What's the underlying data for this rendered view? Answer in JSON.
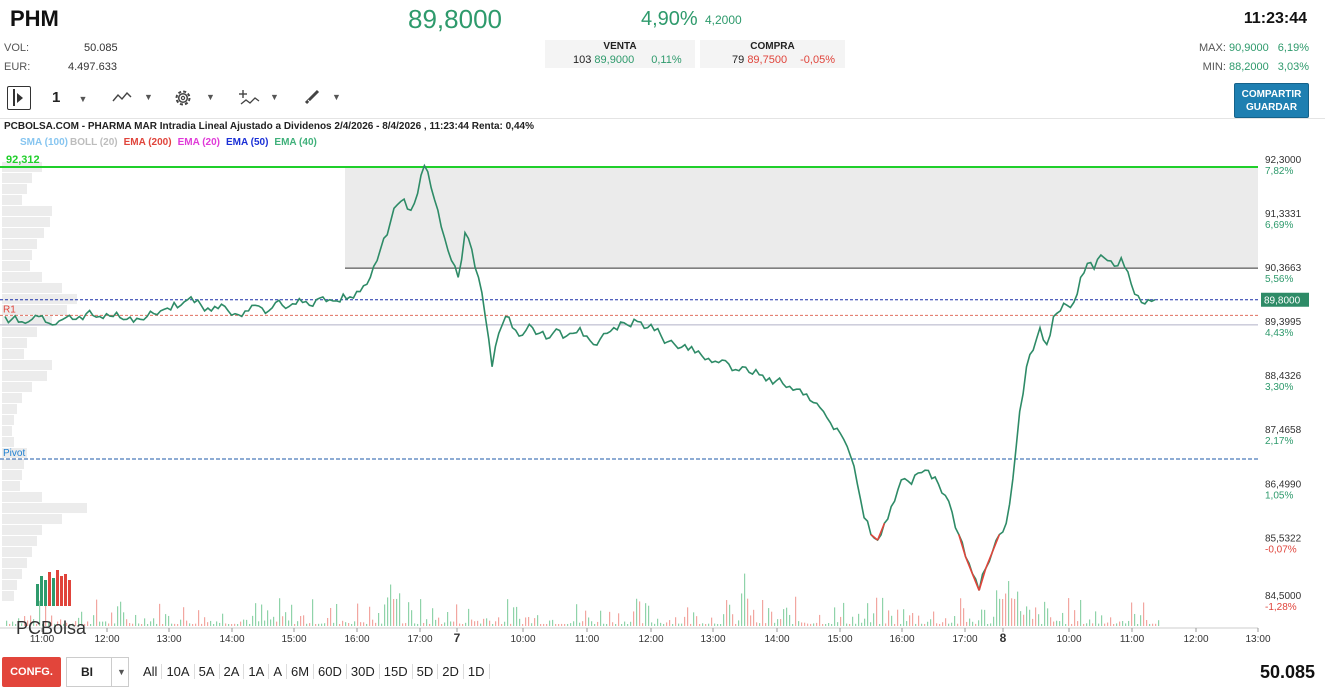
{
  "header": {
    "ticker": "PHM",
    "price": "89,8000",
    "change_pct": "4,90%",
    "change_abs": "4,2000",
    "time": "11:23:44",
    "vol_label": "VOL:",
    "vol_value": "50.085",
    "eur_label": "EUR:",
    "eur_value": "4.497.633",
    "venta_label": "VENTA",
    "venta_qty": "103",
    "venta_price": "89,9000",
    "venta_pct": "0,11%",
    "compra_label": "COMPRA",
    "compra_qty": "79",
    "compra_price": "89,7500",
    "compra_pct": "-0,05%",
    "max_label": "MAX:",
    "max_value": "90,9000",
    "max_pct": "6,19%",
    "min_label": "MIN:",
    "min_value": "88,2000",
    "min_pct": "3,03%"
  },
  "toolbar": {
    "interval": "1",
    "share_line1": "COMPARTIR",
    "share_line2": "GUARDAR"
  },
  "chart_title": "PCBOLSA.COM - PHARMA MAR Intradia Lineal Ajustado a Dividenos 2/4/2026 - 8/4/2026 , 11:23:44 Renta: 0,44%",
  "legend": {
    "sma": "SMA (100)",
    "boll": "BOLL (20)",
    "ema200": "EMA (200)",
    "ema20": "EMA (20)",
    "ema50": "EMA (50)",
    "ema40": "EMA (40)"
  },
  "colors": {
    "up": "#2e9a6c",
    "down": "#e0443b",
    "accent": "#1e7fb1",
    "line": "#2e8b67",
    "sma": "#86c5f0",
    "boll": "#bdbdbd",
    "ema200": "#e0443b",
    "ema20": "#e03ad8",
    "ema50": "#1a2fd6",
    "ema40": "#3fb07a"
  },
  "chart_data": {
    "type": "line",
    "y_ticks": [
      {
        "v": 92.3,
        "label": "92,3000",
        "pct": "7,82%"
      },
      {
        "v": 91.3331,
        "label": "91,3331",
        "pct": "6,69%"
      },
      {
        "v": 90.3663,
        "label": "90,3663",
        "pct": "5,56%"
      },
      {
        "v": 89.3995,
        "label": "89,3995",
        "pct": "4,43%"
      },
      {
        "v": 88.4326,
        "label": "88,4326",
        "pct": "3,30%"
      },
      {
        "v": 87.4658,
        "label": "87,4658",
        "pct": "2,17%"
      },
      {
        "v": 86.499,
        "label": "86,4990",
        "pct": "1,05%"
      },
      {
        "v": 85.5322,
        "label": "85,5322",
        "pct": "-0,07%"
      },
      {
        "v": 84.5,
        "label": "84,5000",
        "pct": "-1,28%"
      }
    ],
    "x_ticks": [
      "11:00",
      "12:00",
      "13:00",
      "14:00",
      "15:00",
      "16:00",
      "17:00",
      "7",
      "10:00",
      "11:00",
      "12:00",
      "13:00",
      "14:00",
      "15:00",
      "16:00",
      "17:00",
      "8",
      "10:00",
      "11:00",
      "12:00",
      "13:00"
    ],
    "x_tick_bold": [
      false,
      false,
      false,
      false,
      false,
      false,
      false,
      true,
      false,
      false,
      false,
      false,
      false,
      false,
      false,
      false,
      true,
      false,
      false,
      false,
      false
    ],
    "top_level": {
      "v": 92.312,
      "label": "92,312"
    },
    "current": {
      "v": 89.8,
      "label": "89,8000"
    },
    "r1": {
      "v": 89.52,
      "label": "R1"
    },
    "pivot": {
      "v": 86.95,
      "label": "Pivot"
    },
    "resistance": 90.3663,
    "prices": [
      89.5,
      89.45,
      89.4,
      89.38,
      89.45,
      89.5,
      89.4,
      89.35,
      89.42,
      89.48,
      89.45,
      89.5,
      89.55,
      89.52,
      89.5,
      89.55,
      89.5,
      89.48,
      89.45,
      89.4,
      89.45,
      89.5,
      89.55,
      89.6,
      89.65,
      89.75,
      89.7,
      89.8,
      89.75,
      89.7,
      89.65,
      89.68,
      89.72,
      89.6,
      89.55,
      89.5,
      89.6,
      89.7,
      89.65,
      89.6,
      89.75,
      89.7,
      89.68,
      89.72,
      89.75,
      89.7,
      89.8,
      89.85,
      89.8,
      89.78,
      89.9,
      89.85,
      89.95,
      90.05,
      90.2,
      90.5,
      90.9,
      91.2,
      91.5,
      91.6,
      91.4,
      91.7,
      92.2,
      91.8,
      91.4,
      90.9,
      90.5,
      90.2,
      91.0,
      90.7,
      90.2,
      89.5,
      88.6,
      89.2,
      89.5,
      89.3,
      89.15,
      89.25,
      89.3,
      89.2,
      89.1,
      89.2,
      89.25,
      89.15,
      89.2,
      89.3,
      89.15,
      89.0,
      89.1,
      89.2,
      89.3,
      89.4,
      89.35,
      89.45,
      89.4,
      89.3,
      89.25,
      89.15,
      89.05,
      89.0,
      88.95,
      88.9,
      88.85,
      88.8,
      88.75,
      88.7,
      88.72,
      88.65,
      88.55,
      88.6,
      88.5,
      88.55,
      88.45,
      88.4,
      88.35,
      88.3,
      88.25,
      88.2,
      88.1,
      88.0,
      87.95,
      87.8,
      87.6,
      87.5,
      87.3,
      87.0,
      86.5,
      85.9,
      85.6,
      85.5,
      85.8,
      86.1,
      86.4,
      86.6,
      86.5,
      86.7,
      86.75,
      86.6,
      86.5,
      86.3,
      86.0,
      85.6,
      85.2,
      84.9,
      84.6,
      85.0,
      85.3,
      85.6,
      85.8,
      86.6,
      87.8,
      88.6,
      88.9,
      89.3,
      89.0,
      89.5,
      89.6,
      89.7,
      89.75,
      90.2,
      90.45,
      90.35,
      90.6,
      90.5,
      90.4,
      90.55,
      90.3,
      89.9,
      89.75,
      89.8,
      89.8
    ],
    "volume_hint": "bars"
  },
  "bottom": {
    "conf_label": "CONFG.",
    "bi_label": "BI",
    "periods": [
      "All",
      "10A",
      "5A",
      "2A",
      "1A",
      "A",
      "6M",
      "60D",
      "30D",
      "15D",
      "5D",
      "2D",
      "1D"
    ],
    "total_volume": "50.085"
  },
  "logo_text": "PCBolsa"
}
